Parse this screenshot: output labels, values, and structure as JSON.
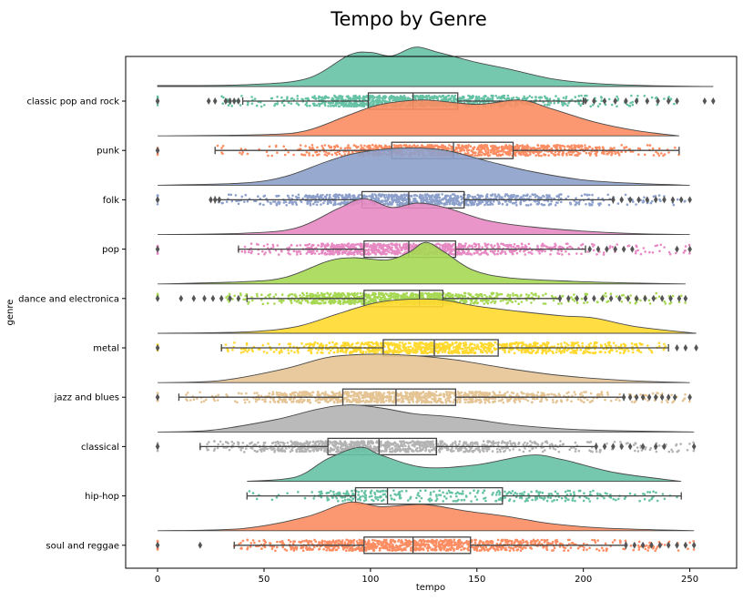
{
  "chart_data": {
    "type": "raincloud",
    "title": "Tempo by Genre",
    "xlabel": "tempo",
    "ylabel": "genre",
    "xlim": [
      -15,
      272
    ],
    "xticks": [
      0,
      50,
      100,
      150,
      200,
      250
    ],
    "xtick_labels": [
      "0",
      "50",
      "100",
      "150",
      "200",
      "250"
    ],
    "grid": false,
    "series": [
      {
        "name": "classic pop and rock",
        "color": "#66c2a5",
        "q1": 99,
        "median": 120,
        "q3": 141,
        "whisker_low": 40,
        "whisker_high": 200,
        "jitter_min": 30,
        "jitter_max": 246,
        "outliers": [
          0,
          24,
          27,
          32,
          34,
          36,
          38,
          201,
          205,
          210,
          215,
          220,
          225,
          230,
          235,
          240,
          244,
          257,
          261
        ],
        "density": [
          [
            0,
            0.02
          ],
          [
            40,
            0.04
          ],
          [
            70,
            0.18
          ],
          [
            90,
            0.72
          ],
          [
            100,
            0.78
          ],
          [
            110,
            0.7
          ],
          [
            121,
            0.9
          ],
          [
            132,
            0.78
          ],
          [
            150,
            0.55
          ],
          [
            165,
            0.4
          ],
          [
            185,
            0.18
          ],
          [
            205,
            0.07
          ],
          [
            230,
            0.02
          ],
          [
            261,
            0.0
          ]
        ]
      },
      {
        "name": "punk",
        "color": "#fc8d62",
        "q1": 110,
        "median": 139,
        "q3": 167,
        "whisker_low": 27,
        "whisker_high": 245,
        "jitter_min": 27,
        "jitter_max": 245,
        "outliers": [
          0
        ],
        "density": [
          [
            0,
            0.0
          ],
          [
            50,
            0.03
          ],
          [
            70,
            0.12
          ],
          [
            90,
            0.48
          ],
          [
            105,
            0.72
          ],
          [
            125,
            0.82
          ],
          [
            150,
            0.72
          ],
          [
            170,
            0.82
          ],
          [
            185,
            0.62
          ],
          [
            205,
            0.32
          ],
          [
            225,
            0.12
          ],
          [
            245,
            0.0
          ]
        ]
      },
      {
        "name": "folk",
        "color": "#8da0cb",
        "q1": 96,
        "median": 118,
        "q3": 144,
        "whisker_low": 27,
        "whisker_high": 214,
        "jitter_min": 27,
        "jitter_max": 250,
        "outliers": [
          0,
          25,
          27,
          29,
          214,
          218,
          222,
          226,
          230,
          234,
          238,
          242,
          246,
          250
        ],
        "density": [
          [
            0,
            0.0
          ],
          [
            40,
            0.05
          ],
          [
            60,
            0.2
          ],
          [
            80,
            0.55
          ],
          [
            95,
            0.75
          ],
          [
            115,
            0.85
          ],
          [
            135,
            0.8
          ],
          [
            155,
            0.55
          ],
          [
            175,
            0.32
          ],
          [
            200,
            0.12
          ],
          [
            225,
            0.04
          ],
          [
            250,
            0.0
          ]
        ]
      },
      {
        "name": "pop",
        "color": "#e78ac3",
        "q1": 97,
        "median": 118,
        "q3": 140,
        "whisker_low": 38,
        "whisker_high": 201,
        "jitter_min": 38,
        "jitter_max": 250,
        "outliers": [
          0,
          203,
          207,
          211,
          215,
          219,
          223,
          244,
          250
        ],
        "density": [
          [
            0,
            0.0
          ],
          [
            40,
            0.03
          ],
          [
            65,
            0.15
          ],
          [
            85,
            0.6
          ],
          [
            97,
            0.82
          ],
          [
            110,
            0.62
          ],
          [
            122,
            0.72
          ],
          [
            135,
            0.62
          ],
          [
            155,
            0.32
          ],
          [
            175,
            0.18
          ],
          [
            200,
            0.08
          ],
          [
            225,
            0.02
          ],
          [
            250,
            0.0
          ]
        ]
      },
      {
        "name": "dance and electronica",
        "color": "#a6d854",
        "q1": 97,
        "median": 123,
        "q3": 134,
        "whisker_low": 42,
        "whisker_high": 189,
        "jitter_min": 30,
        "jitter_max": 248,
        "outliers": [
          0,
          11,
          17,
          22,
          26,
          30,
          34,
          38,
          189,
          193,
          197,
          201,
          205,
          209,
          213,
          217,
          221,
          225,
          229,
          233,
          237,
          241,
          245,
          248
        ],
        "density": [
          [
            0,
            0.0
          ],
          [
            40,
            0.05
          ],
          [
            60,
            0.15
          ],
          [
            80,
            0.52
          ],
          [
            92,
            0.6
          ],
          [
            108,
            0.55
          ],
          [
            118,
            0.72
          ],
          [
            126,
            0.95
          ],
          [
            135,
            0.72
          ],
          [
            148,
            0.32
          ],
          [
            165,
            0.14
          ],
          [
            195,
            0.06
          ],
          [
            225,
            0.02
          ],
          [
            248,
            0.0
          ]
        ]
      },
      {
        "name": "metal",
        "color": "#ffd92f",
        "q1": 106,
        "median": 130,
        "q3": 160,
        "whisker_low": 30,
        "whisker_high": 240,
        "jitter_min": 30,
        "jitter_max": 240,
        "outliers": [
          0,
          244,
          248,
          253
        ],
        "density": [
          [
            0,
            0.0
          ],
          [
            40,
            0.03
          ],
          [
            65,
            0.15
          ],
          [
            85,
            0.45
          ],
          [
            105,
            0.72
          ],
          [
            130,
            0.78
          ],
          [
            150,
            0.62
          ],
          [
            170,
            0.5
          ],
          [
            190,
            0.4
          ],
          [
            205,
            0.35
          ],
          [
            225,
            0.15
          ],
          [
            253,
            0.0
          ]
        ]
      },
      {
        "name": "jazz and blues",
        "color": "#e5c494",
        "q1": 87,
        "median": 112,
        "q3": 140,
        "whisker_low": 10,
        "whisker_high": 219,
        "jitter_min": 10,
        "jitter_max": 250,
        "outliers": [
          0,
          219,
          222,
          225,
          228,
          231,
          234,
          237,
          240,
          243,
          250
        ],
        "density": [
          [
            0,
            0.0
          ],
          [
            30,
            0.05
          ],
          [
            60,
            0.32
          ],
          [
            80,
            0.58
          ],
          [
            100,
            0.65
          ],
          [
            120,
            0.62
          ],
          [
            140,
            0.52
          ],
          [
            165,
            0.32
          ],
          [
            190,
            0.16
          ],
          [
            220,
            0.05
          ],
          [
            250,
            0.0
          ]
        ]
      },
      {
        "name": "classical",
        "color": "#b3b3b3",
        "q1": 80,
        "median": 104,
        "q3": 131,
        "whisker_low": 20,
        "whisker_high": 206,
        "jitter_min": 20,
        "jitter_max": 252,
        "outliers": [
          0,
          206,
          210,
          214,
          218,
          222,
          228,
          234,
          238,
          252
        ],
        "density": [
          [
            0,
            0.0
          ],
          [
            25,
            0.04
          ],
          [
            55,
            0.28
          ],
          [
            75,
            0.52
          ],
          [
            90,
            0.62
          ],
          [
            105,
            0.55
          ],
          [
            120,
            0.42
          ],
          [
            135,
            0.36
          ],
          [
            150,
            0.28
          ],
          [
            170,
            0.15
          ],
          [
            200,
            0.05
          ],
          [
            252,
            0.0
          ]
        ]
      },
      {
        "name": "hip-hop",
        "color": "#66c2a5",
        "q1": 93,
        "median": 108,
        "q3": 162,
        "whisker_low": 42,
        "whisker_high": 246,
        "jitter_min": 42,
        "jitter_max": 246,
        "outliers": [],
        "density": [
          [
            42,
            0.0
          ],
          [
            65,
            0.1
          ],
          [
            80,
            0.52
          ],
          [
            95,
            0.78
          ],
          [
            105,
            0.6
          ],
          [
            125,
            0.32
          ],
          [
            150,
            0.38
          ],
          [
            175,
            0.6
          ],
          [
            190,
            0.5
          ],
          [
            215,
            0.2
          ],
          [
            246,
            0.0
          ]
        ]
      },
      {
        "name": "soul and reggae",
        "color": "#fc8d62",
        "q1": 97,
        "median": 120,
        "q3": 147,
        "whisker_low": 36,
        "whisker_high": 220,
        "jitter_min": 36,
        "jitter_max": 252,
        "outliers": [
          0,
          20,
          220,
          224,
          228,
          232,
          236,
          240,
          244,
          248,
          252
        ],
        "density": [
          [
            0,
            0.0
          ],
          [
            40,
            0.05
          ],
          [
            70,
            0.32
          ],
          [
            90,
            0.65
          ],
          [
            105,
            0.55
          ],
          [
            125,
            0.6
          ],
          [
            145,
            0.45
          ],
          [
            165,
            0.32
          ],
          [
            185,
            0.16
          ],
          [
            210,
            0.06
          ],
          [
            252,
            0.0
          ]
        ]
      }
    ]
  }
}
